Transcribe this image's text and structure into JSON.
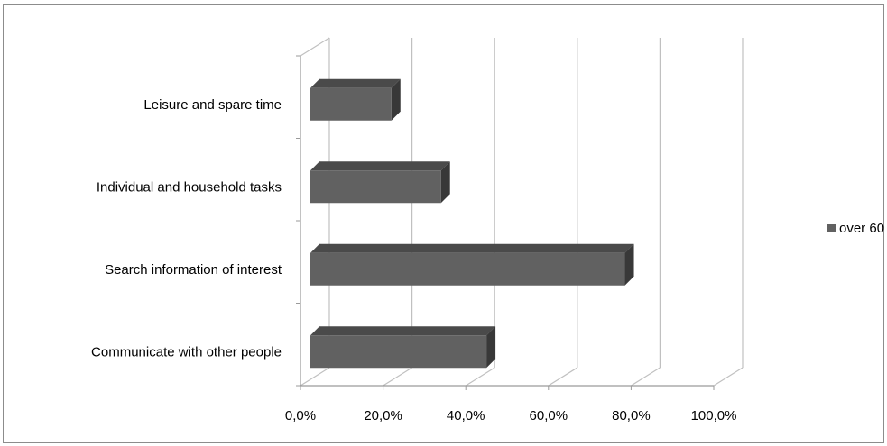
{
  "chart_data": {
    "type": "bar",
    "orientation": "horizontal",
    "three_d": true,
    "categories": [
      "Communicate with other people",
      "Search information of interest",
      "Individual and household tasks",
      "Leisure and spare time"
    ],
    "series": [
      {
        "name": "over 60",
        "values": [
          45.0,
          78.5,
          34.0,
          22.0
        ]
      }
    ],
    "xlim": [
      0,
      100
    ],
    "x_ticks": [
      0,
      20,
      40,
      60,
      80,
      100
    ],
    "x_tick_labels": [
      "0,0%",
      "20,0%",
      "40,0%",
      "60,0%",
      "80,0%",
      "100,0%"
    ],
    "legend_position": "right",
    "grid": true,
    "colors": {
      "bar_front": "#616161",
      "bar_top": "#4a4a4a",
      "bar_side": "#383838",
      "gridline": "#c0c0c0",
      "axis": "#9a9a9a",
      "frame_border": "#8c8c8c"
    }
  }
}
